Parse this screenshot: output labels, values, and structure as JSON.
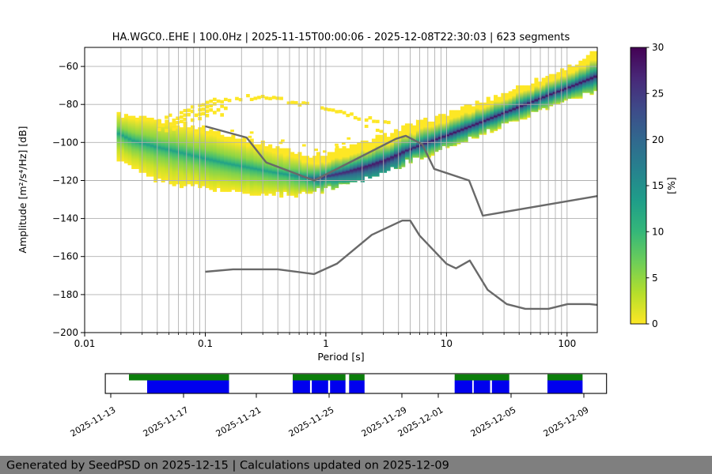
{
  "chart_data": {
    "type": "heatmap",
    "title": "HA.WGC0..EHE | 100.0Hz | 2025-11-15T00:00:06 - 2025-12-08T22:30:03 | 623 segments",
    "xlabel": "Period [s]",
    "ylabel": "Amplitude [m²/s⁴/Hz] [dB]",
    "xlim": [
      0.01,
      178
    ],
    "ylim": [
      -200,
      -50
    ],
    "x_ticks": [
      0.01,
      0.1,
      1,
      10,
      100
    ],
    "y_ticks": [
      -60,
      -80,
      -100,
      -120,
      -140,
      -160,
      -180,
      -200
    ],
    "grid": true,
    "colorbar": {
      "label": "[%]",
      "min": 0,
      "max": 30,
      "ticks": [
        0,
        5,
        10,
        15,
        20,
        25,
        30
      ],
      "colormap": "viridis_r"
    },
    "psd_histogram": {
      "description": "PPSD probability band envelope: [period s, top dB, mode dB, bottom dB, mode probability %]",
      "points": [
        [
          0.0185,
          -85,
          -95,
          -108,
          13
        ],
        [
          0.025,
          -87,
          -99,
          -114,
          13
        ],
        [
          0.04,
          -88.5,
          -102.5,
          -120,
          13
        ],
        [
          0.06,
          -90,
          -105,
          -122.5,
          13
        ],
        [
          0.1,
          -92.5,
          -108.5,
          -124,
          13
        ],
        [
          0.15,
          -95.5,
          -111,
          -125.5,
          13
        ],
        [
          0.22,
          -98.5,
          -113,
          -127,
          13
        ],
        [
          0.35,
          -101.5,
          -115.5,
          -127.5,
          13
        ],
        [
          0.5,
          -104,
          -117,
          -127.5,
          14
        ],
        [
          0.7,
          -106.5,
          -118.5,
          -126.5,
          18
        ],
        [
          0.85,
          -107,
          -119.3,
          -126,
          24
        ],
        [
          1.0,
          -105.5,
          -118,
          -124.5,
          26
        ],
        [
          1.5,
          -102.5,
          -115.5,
          -121.5,
          27
        ],
        [
          2.2,
          -99,
          -112.5,
          -118.5,
          28
        ],
        [
          3.2,
          -95.5,
          -109,
          -115,
          28
        ],
        [
          4.6,
          -91.5,
          -104.5,
          -111,
          28
        ],
        [
          7.0,
          -88,
          -100,
          -107,
          28
        ],
        [
          10.0,
          -85,
          -96.5,
          -103,
          29
        ],
        [
          15.0,
          -81,
          -92.2,
          -98.5,
          29
        ],
        [
          22.0,
          -77.5,
          -88,
          -94.5,
          29
        ],
        [
          33.0,
          -73,
          -83.5,
          -90,
          29
        ],
        [
          50.0,
          -68.5,
          -79,
          -85.5,
          29
        ],
        [
          75.0,
          -64,
          -74.5,
          -81,
          29
        ],
        [
          110.0,
          -59.5,
          -70.5,
          -77,
          29
        ],
        [
          150.0,
          -55,
          -67,
          -75,
          29
        ],
        [
          178.0,
          -50.5,
          -65,
          -74,
          29
        ]
      ]
    },
    "outlier_ring": {
      "description": "sparse low-probability arc above main band: [period s, dB]",
      "points": [
        [
          0.04,
          -88
        ],
        [
          0.055,
          -83.5
        ],
        [
          0.08,
          -79.5
        ],
        [
          0.12,
          -77
        ],
        [
          0.18,
          -75.8
        ],
        [
          0.28,
          -75.5
        ],
        [
          0.4,
          -76.5
        ],
        [
          0.55,
          -78
        ],
        [
          0.75,
          -80.5
        ],
        [
          1.0,
          -82.5
        ],
        [
          1.4,
          -84.5
        ],
        [
          2.0,
          -86.5
        ],
        [
          2.6,
          -88
        ],
        [
          3.2,
          -89.5
        ]
      ]
    },
    "noise_models": {
      "color": "#696969",
      "nhnm": [
        [
          0.1,
          -91.5
        ],
        [
          0.22,
          -97.4
        ],
        [
          0.32,
          -110.5
        ],
        [
          0.8,
          -120.0
        ],
        [
          3.8,
          -98.1
        ],
        [
          4.6,
          -96.5
        ],
        [
          6.3,
          -101.0
        ],
        [
          7.9,
          -113.9
        ],
        [
          15.4,
          -120.0
        ],
        [
          20.0,
          -138.5
        ],
        [
          178.0,
          -128.2
        ]
      ],
      "nlnm": [
        [
          0.1,
          -168.0
        ],
        [
          0.17,
          -166.7
        ],
        [
          0.4,
          -166.7
        ],
        [
          0.8,
          -169.2
        ],
        [
          1.24,
          -163.7
        ],
        [
          2.4,
          -148.6
        ],
        [
          4.3,
          -141.1
        ],
        [
          5.0,
          -141.1
        ],
        [
          6.0,
          -149.0
        ],
        [
          10.0,
          -163.8
        ],
        [
          12.0,
          -166.2
        ],
        [
          15.6,
          -162.1
        ],
        [
          21.9,
          -177.5
        ],
        [
          31.6,
          -185.0
        ],
        [
          45.0,
          -187.5
        ],
        [
          70.0,
          -187.5
        ],
        [
          101.0,
          -185.0
        ],
        [
          154.0,
          -185.0
        ],
        [
          178.0,
          -185.4
        ]
      ]
    }
  },
  "timeline": {
    "tick_labels": [
      "2025-11-13",
      "2025-11-17",
      "2025-11-21",
      "2025-11-25",
      "2025-11-29",
      "2025-12-01",
      "2025-12-05",
      "2025-12-09"
    ],
    "tick_days": [
      0,
      4,
      8,
      12,
      16,
      18,
      22,
      26
    ],
    "axis_range_days": [
      -0.3,
      27.25
    ],
    "data_segments_days": [
      [
        1.0,
        6.5
      ],
      [
        10.0,
        12.9
      ],
      [
        13.1,
        13.95
      ],
      [
        18.9,
        21.9
      ],
      [
        24.0,
        25.93
      ]
    ],
    "psd_segments_days": [
      [
        2.0,
        6.5
      ],
      [
        10.0,
        10.95
      ],
      [
        11.05,
        11.95
      ],
      [
        12.05,
        12.9
      ],
      [
        13.1,
        13.95
      ],
      [
        18.9,
        19.87
      ],
      [
        19.95,
        20.85
      ],
      [
        20.95,
        21.9
      ],
      [
        24.0,
        25.93
      ]
    ],
    "colors": {
      "data_available": "#0b7e0b",
      "psd_computed": "#0000ee"
    }
  },
  "footer": {
    "text": "Generated by SeedPSD on 2025-12-15 | Calculations updated on 2025-12-09",
    "background": "#7f7f7f",
    "text_color": "#ffffff"
  }
}
